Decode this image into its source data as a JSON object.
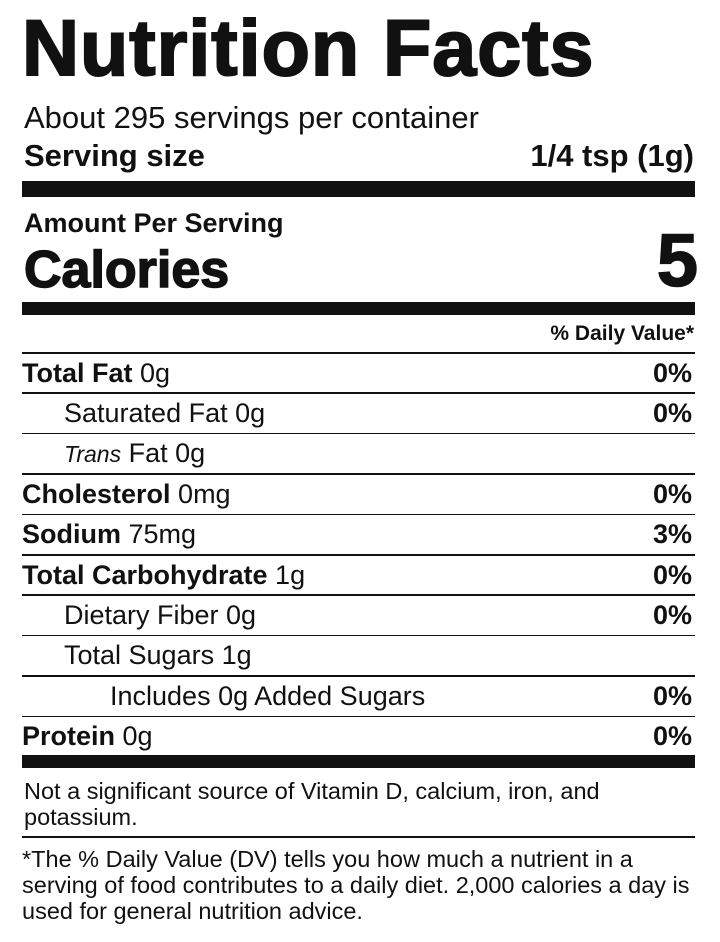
{
  "title": "Nutrition Facts",
  "servings": "About 295 servings per container",
  "serving_size": {
    "label": "Serving size",
    "value": "1/4 tsp (1g)"
  },
  "amount_per_serving": "Amount Per Serving",
  "calories": {
    "label": "Calories",
    "value": "5"
  },
  "dv_header": "% Daily Value*",
  "rows": [
    {
      "label": "Total Fat",
      "amount": "0g",
      "dv": "0%",
      "level": 0
    },
    {
      "label": "Saturated Fat 0g",
      "dv": "0%",
      "level": 1
    },
    {
      "italic": "Trans",
      "label": "Fat 0g",
      "level": 1
    },
    {
      "label": "Cholesterol",
      "amount": "0mg",
      "dv": "0%",
      "level": 0
    },
    {
      "label": "Sodium",
      "amount": "75mg",
      "dv": "3%",
      "level": 0
    },
    {
      "label": "Total Carbohydrate",
      "amount": "1g",
      "dv": "0%",
      "level": 0
    },
    {
      "label": "Dietary Fiber 0g",
      "dv": "0%",
      "level": 1
    },
    {
      "label": "Total Sugars 1g",
      "level": 1
    },
    {
      "label": "Includes 0g Added Sugars",
      "dv": "0%",
      "level": 2
    },
    {
      "label": "Protein",
      "amount": "0g",
      "dv": "0%",
      "level": 0
    }
  ],
  "vitamin_note": "Not a significant source of Vitamin D, calcium, iron, and potassium.",
  "footnote": "*The % Daily Value (DV) tells you how much a nutrient in a serving of food contributes to a daily diet. 2,000 calories a day is used for general nutrition advice."
}
